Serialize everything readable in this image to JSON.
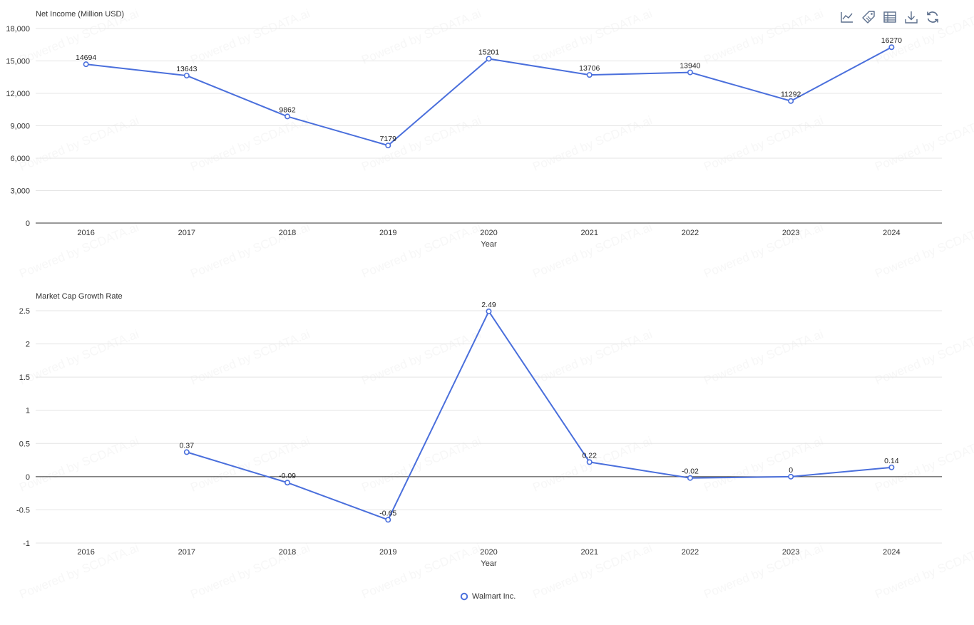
{
  "watermark": "Powered by SCDATA.ai",
  "colors": {
    "series": "#4a6fdc",
    "grid": "#e4e4e4",
    "axis": "#333333",
    "text": "#333333"
  },
  "toolbar": {
    "icons": [
      "line-chart-icon",
      "tag-icon",
      "data-table-icon",
      "download-icon",
      "refresh-icon"
    ]
  },
  "legend": {
    "position": "bottom-center",
    "label": "Walmart Inc."
  },
  "chart_data": [
    {
      "type": "line",
      "ylabel": "Net Income (Million USD)",
      "xlabel": "Year",
      "categories": [
        "2016",
        "2017",
        "2018",
        "2019",
        "2020",
        "2021",
        "2022",
        "2023",
        "2024"
      ],
      "yticks": [
        "0",
        "3,000",
        "6,000",
        "9,000",
        "12,000",
        "15,000",
        "18,000"
      ],
      "ylim": [
        0,
        18000
      ],
      "grid": true,
      "series": [
        {
          "name": "Walmart Inc.",
          "values": [
            14694,
            13643,
            9862,
            7179,
            15201,
            13706,
            13940,
            11292,
            16270
          ]
        }
      ]
    },
    {
      "type": "line",
      "ylabel": "Market Cap Growth Rate",
      "xlabel": "Year",
      "categories": [
        "2016",
        "2017",
        "2018",
        "2019",
        "2020",
        "2021",
        "2022",
        "2023",
        "2024"
      ],
      "yticks": [
        "-1",
        "-0.5",
        "0",
        "0.5",
        "1",
        "1.5",
        "2",
        "2.5"
      ],
      "ylim": [
        -1,
        2.5
      ],
      "grid": true,
      "series": [
        {
          "name": "Walmart Inc.",
          "values": [
            null,
            0.37,
            -0.09,
            -0.65,
            2.49,
            0.22,
            -0.02,
            0,
            0.14
          ]
        }
      ]
    }
  ]
}
